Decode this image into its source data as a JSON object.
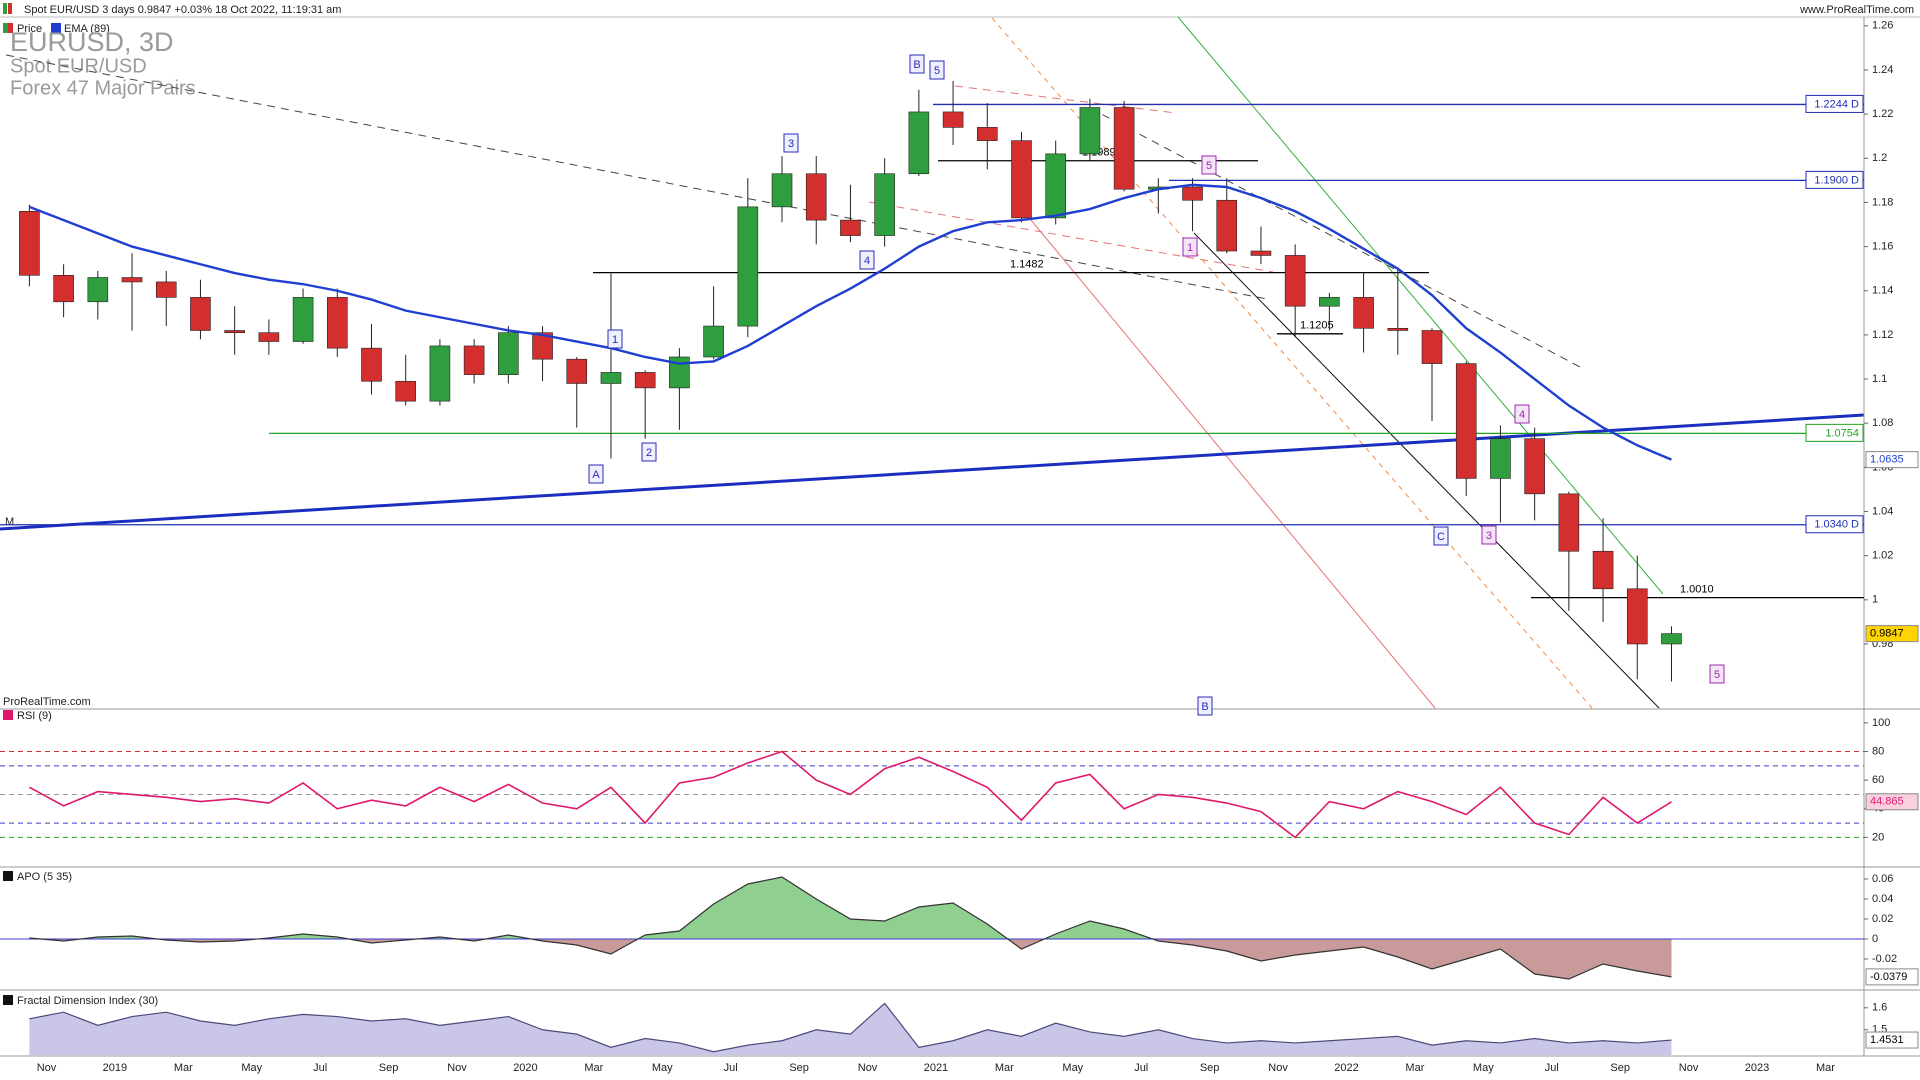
{
  "header": {
    "info": "Spot EUR/USD 3 days 0.9847 +0.03% 18 Oct 2022, 11:19:31 am",
    "site": "www.ProRealTime.com"
  },
  "chart_data": [
    {
      "type": "candlestick",
      "title": "EURUSD, 3D",
      "subtitle": "Spot EUR/USD",
      "note": "Forex 47 Major Pairs",
      "watermark": "ProRealTime.com",
      "marker": "M",
      "x": [
        "2018-10",
        "2018-11",
        "2018-12",
        "2019-01",
        "2019-02",
        "2019-03",
        "2019-04",
        "2019-05",
        "2019-06",
        "2019-07",
        "2019-08",
        "2019-09",
        "2019-10",
        "2019-11",
        "2019-12",
        "2020-01",
        "2020-02",
        "2020-03",
        "2020-04",
        "2020-05",
        "2020-06",
        "2020-07",
        "2020-08",
        "2020-09",
        "2020-10",
        "2020-11",
        "2020-12",
        "2021-01",
        "2021-02",
        "2021-03",
        "2021-04",
        "2021-05",
        "2021-06",
        "2021-07",
        "2021-08",
        "2021-09",
        "2021-10",
        "2021-11",
        "2021-12",
        "2022-01",
        "2022-02",
        "2022-03",
        "2022-04",
        "2022-05",
        "2022-06",
        "2022-07",
        "2022-08",
        "2022-09",
        "2022-10"
      ],
      "xtick_labels": [
        "Nov",
        "2019",
        "Mar",
        "May",
        "Jul",
        "Sep",
        "Nov",
        "2020",
        "Mar",
        "May",
        "Jul",
        "Sep",
        "Nov",
        "2021",
        "Mar",
        "May",
        "Jul",
        "Sep",
        "Nov",
        "2022",
        "Mar",
        "May",
        "Jul",
        "Sep",
        "Nov",
        "2023",
        "Mar"
      ],
      "series": [
        {
          "name": "Price",
          "up_color": "#2e9e3e",
          "down_color": "#d32f2f",
          "open": [
            1.176,
            1.147,
            1.135,
            1.146,
            1.144,
            1.137,
            1.122,
            1.121,
            1.117,
            1.137,
            1.114,
            1.099,
            1.09,
            1.115,
            1.102,
            1.121,
            1.109,
            1.098,
            1.103,
            1.096,
            1.11,
            1.124,
            1.178,
            1.193,
            1.172,
            1.165,
            1.193,
            1.221,
            1.214,
            1.208,
            1.173,
            1.202,
            1.223,
            1.186,
            1.187,
            1.181,
            1.158,
            1.156,
            1.133,
            1.137,
            1.123,
            1.122,
            1.107,
            1.055,
            1.073,
            1.048,
            1.022,
            1.005,
            0.98
          ],
          "high": [
            1.179,
            1.152,
            1.149,
            1.157,
            1.149,
            1.145,
            1.133,
            1.127,
            1.141,
            1.141,
            1.125,
            1.111,
            1.118,
            1.118,
            1.124,
            1.124,
            1.11,
            1.148,
            1.104,
            1.114,
            1.142,
            1.191,
            1.201,
            1.201,
            1.188,
            1.2,
            1.231,
            1.235,
            1.225,
            1.212,
            1.208,
            1.227,
            1.226,
            1.191,
            1.191,
            1.191,
            1.169,
            1.161,
            1.139,
            1.148,
            1.15,
            1.123,
            1.108,
            1.079,
            1.078,
            1.049,
            1.037,
            1.02,
            0.988
          ],
          "low": [
            1.142,
            1.128,
            1.127,
            1.122,
            1.124,
            1.118,
            1.111,
            1.111,
            1.116,
            1.11,
            1.093,
            1.088,
            1.088,
            1.098,
            1.098,
            1.099,
            1.078,
            1.064,
            1.073,
            1.077,
            1.109,
            1.119,
            1.171,
            1.161,
            1.162,
            1.16,
            1.192,
            1.206,
            1.195,
            1.171,
            1.17,
            1.199,
            1.185,
            1.175,
            1.167,
            1.157,
            1.152,
            1.119,
            1.122,
            1.112,
            1.111,
            1.081,
            1.047,
            1.035,
            1.036,
            0.995,
            0.99,
            0.964,
            0.963
          ],
          "close": [
            1.147,
            1.135,
            1.146,
            1.144,
            1.137,
            1.122,
            1.121,
            1.117,
            1.137,
            1.114,
            1.099,
            1.09,
            1.115,
            1.102,
            1.121,
            1.109,
            1.098,
            1.103,
            1.096,
            1.11,
            1.124,
            1.178,
            1.193,
            1.172,
            1.165,
            1.193,
            1.221,
            1.214,
            1.208,
            1.173,
            1.202,
            1.223,
            1.186,
            1.187,
            1.181,
            1.158,
            1.156,
            1.133,
            1.137,
            1.123,
            1.122,
            1.107,
            1.055,
            1.073,
            1.048,
            1.022,
            1.005,
            0.98,
            0.9847
          ]
        },
        {
          "name": "EMA (89)",
          "color": "#1f3fd0",
          "values": [
            1.178,
            1.172,
            1.166,
            1.16,
            1.156,
            1.152,
            1.148,
            1.145,
            1.143,
            1.14,
            1.136,
            1.131,
            1.128,
            1.125,
            1.122,
            1.12,
            1.117,
            1.114,
            1.11,
            1.107,
            1.108,
            1.115,
            1.124,
            1.133,
            1.141,
            1.15,
            1.16,
            1.167,
            1.171,
            1.172,
            1.174,
            1.177,
            1.182,
            1.186,
            1.188,
            1.187,
            1.182,
            1.176,
            1.168,
            1.159,
            1.15,
            1.138,
            1.123,
            1.112,
            1.1,
            1.088,
            1.078,
            1.07,
            1.0635
          ]
        }
      ],
      "ylim": [
        0.951,
        1.264
      ],
      "yticks": [
        1.26,
        1.24,
        1.22,
        1.2,
        1.18,
        1.16,
        1.14,
        1.12,
        1.1,
        1.08,
        1.06,
        1.04,
        1.02,
        1,
        0.98
      ],
      "levels": [
        {
          "value": 1.2244,
          "label": "1.2244 D",
          "color": "#1f2fb0"
        },
        {
          "value": 1.19,
          "label": "1.1900 D",
          "color": "#1f2fb0"
        },
        {
          "value": 1.0754,
          "label": "1.0754",
          "color": "#21a321"
        },
        {
          "value": 1.034,
          "label": "1.0340 D",
          "color": "#1f2fb0"
        },
        {
          "value": 1.001,
          "label": "1.0010",
          "color": "#000000"
        },
        {
          "value": 1.1989,
          "label": "1.1989",
          "color": "#000000"
        },
        {
          "value": 1.1482,
          "label": "1.1482",
          "color": "#000000"
        },
        {
          "value": 1.1205,
          "label": "1.1205",
          "color": "#000000"
        }
      ],
      "wave_labels": [
        {
          "text": "B",
          "color": "#2b2bb5"
        },
        {
          "text": "5",
          "color": "#2b2bb5"
        },
        {
          "text": "3",
          "color": "#2b2bb5"
        },
        {
          "text": "4",
          "color": "#2b2bb5"
        },
        {
          "text": "1",
          "color": "#2b2bb5"
        },
        {
          "text": "A",
          "color": "#2b2bb5"
        },
        {
          "text": "2",
          "color": "#2b2bb5"
        },
        {
          "text": "5",
          "color": "#9c27b0"
        },
        {
          "text": "1",
          "color": "#9c27b0"
        },
        {
          "text": "C",
          "color": "#2b2bb5"
        },
        {
          "text": "3",
          "color": "#9c27b0"
        },
        {
          "text": "4",
          "color": "#9c27b0"
        },
        {
          "text": "5",
          "color": "#9c27b0"
        },
        {
          "text": "B",
          "color": "#2b2bb5"
        }
      ]
    },
    {
      "type": "line",
      "title": "RSI (9)",
      "color": "#e0186c",
      "values": [
        55,
        42,
        52,
        50,
        48,
        45,
        47,
        44,
        58,
        40,
        46,
        42,
        55,
        45,
        57,
        44,
        40,
        55,
        30,
        58,
        62,
        72,
        80,
        60,
        50,
        68,
        76,
        66,
        55,
        32,
        58,
        64,
        40,
        50,
        48,
        44,
        38,
        20,
        45,
        40,
        52,
        45,
        36,
        55,
        30,
        22,
        48,
        30,
        44.865
      ],
      "ylim": [
        0,
        109
      ],
      "yticks": [
        20,
        40,
        60,
        80,
        100
      ],
      "levels": [
        80,
        70,
        50,
        30,
        20
      ],
      "level_colors": [
        "#d32f2f",
        "#3a3ad0",
        "#999999",
        "#3a3ad0",
        "#21a321"
      ]
    },
    {
      "type": "area",
      "title": "APO (5 35)",
      "color": "#333333",
      "positive_color": "#8fcf8f",
      "negative_color": "#c99a9a",
      "zero_color": "#3a3ad0",
      "values": [
        0.001,
        -0.002,
        0.002,
        0.003,
        -0.001,
        -0.003,
        -0.002,
        0.001,
        0.005,
        0.002,
        -0.004,
        -0.001,
        0.002,
        -0.002,
        0.004,
        -0.002,
        -0.006,
        -0.015,
        0.004,
        0.008,
        0.035,
        0.055,
        0.062,
        0.04,
        0.02,
        0.018,
        0.032,
        0.036,
        0.015,
        -0.01,
        0.005,
        0.018,
        0.01,
        -0.002,
        -0.006,
        -0.012,
        -0.022,
        -0.016,
        -0.012,
        -0.008,
        -0.018,
        -0.03,
        -0.02,
        -0.01,
        -0.035,
        -0.04,
        -0.025,
        -0.032,
        -0.0379
      ],
      "ylim": [
        -0.048,
        0.07
      ],
      "yticks": [
        -0.02,
        0,
        0.02,
        0.04,
        0.06
      ]
    },
    {
      "type": "area",
      "title": "Fractal Dimension Index (30)",
      "color": "#4a4a7a",
      "fill_color": "#c9c6e8",
      "values": [
        1.55,
        1.58,
        1.52,
        1.56,
        1.58,
        1.54,
        1.52,
        1.55,
        1.57,
        1.56,
        1.54,
        1.55,
        1.52,
        1.54,
        1.56,
        1.5,
        1.48,
        1.42,
        1.46,
        1.44,
        1.4,
        1.43,
        1.45,
        1.5,
        1.48,
        1.62,
        1.42,
        1.45,
        1.5,
        1.47,
        1.53,
        1.49,
        1.47,
        1.5,
        1.46,
        1.44,
        1.45,
        1.44,
        1.45,
        1.46,
        1.47,
        1.43,
        1.45,
        1.44,
        1.46,
        1.44,
        1.45,
        1.44,
        1.4531
      ],
      "ylim": [
        1.385,
        1.672
      ],
      "yticks": [
        1.5,
        1.6
      ]
    }
  ]
}
